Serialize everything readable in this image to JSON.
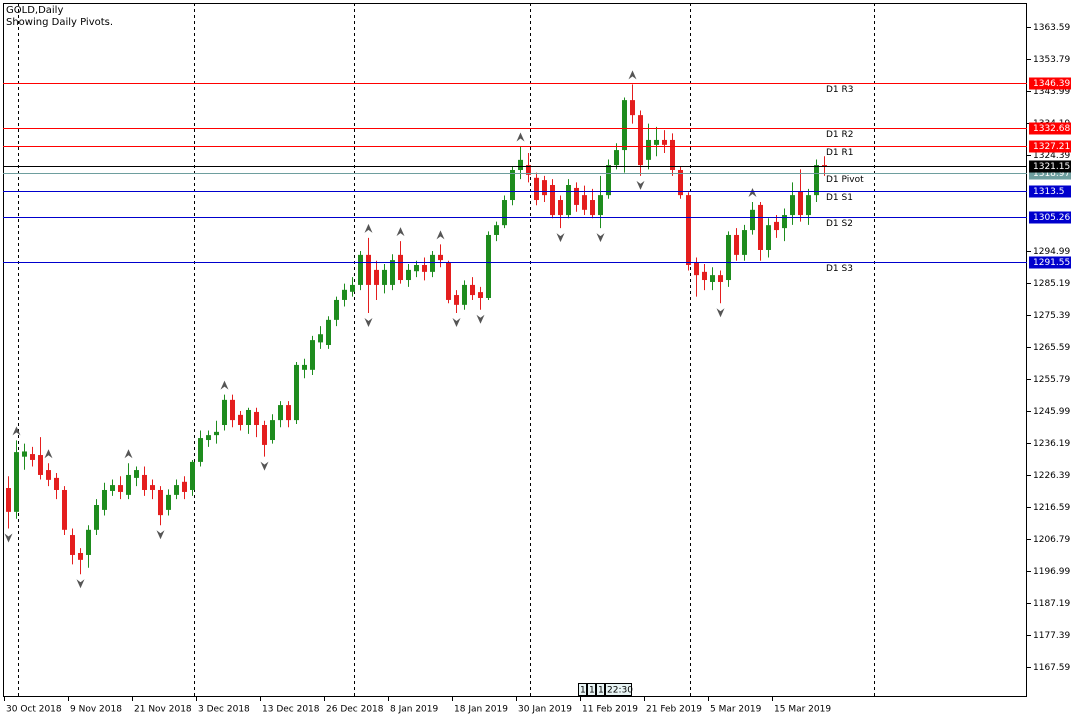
{
  "chart_data": {
    "type": "candlestick",
    "title": "GOLD,Daily",
    "subtitle": "Showing Daily Pivots.",
    "categories": [
      "30 Oct 2018",
      null,
      null,
      null,
      null,
      null,
      null,
      null,
      "9 Nov 2018",
      null,
      null,
      null,
      null,
      null,
      null,
      null,
      "21 Nov 2018",
      null,
      null,
      null,
      null,
      null,
      null,
      null,
      "3 Dec 2018",
      null,
      null,
      null,
      null,
      null,
      null,
      null,
      "13 Dec 2018",
      null,
      null,
      null,
      null,
      null,
      null,
      null,
      "26 Dec 2018",
      null,
      null,
      null,
      null,
      null,
      null,
      null,
      "8 Jan 2019",
      null,
      null,
      null,
      null,
      null,
      null,
      null,
      "18 Jan 2019",
      null,
      null,
      null,
      null,
      null,
      null,
      null,
      "30 Jan 2019",
      null,
      null,
      null,
      null,
      null,
      null,
      null,
      "11 Feb 2019",
      null,
      null,
      null,
      null,
      null,
      null,
      null,
      "21 Feb 2019",
      null,
      null,
      null,
      null,
      null,
      null,
      null,
      "5 Mar 2019",
      null,
      null,
      null,
      null,
      null,
      null,
      null,
      "15 Mar 2019",
      null,
      null,
      null,
      null,
      null,
      null
    ],
    "open": [
      1222.4,
      1215.1,
      1232.0,
      1232.8,
      1232.5,
      1227.9,
      1225.5,
      1221.8,
      1208.0,
      1202.5,
      1201.9,
      1209.6,
      1215.7,
      1221.5,
      1223.3,
      1220.3,
      1225.5,
      1226.4,
      1223.3,
      1221.8,
      1215.7,
      1220.3,
      1224.3,
      1221.8,
      1230.4,
      1237.1,
      1238.6,
      1241.7,
      1249.4,
      1244.8,
      1241.7,
      1245.7,
      1241.7,
      1237.1,
      1243.2,
      1247.8,
      1243.2,
      1258.6,
      1258.6,
      1267.0,
      1266.2,
      1273.9,
      1280.0,
      1282.5,
      1284.6,
      1293.8,
      1289.2,
      1284.6,
      1284.6,
      1293.8,
      1286.1,
      1288.8,
      1290.7,
      1288.6,
      1293.8,
      1291.6,
      1281.5,
      1278.5,
      1284.6,
      1282.4,
      1280.6,
      1299.9,
      1302.9,
      1310.6,
      1319.8,
      1321.3,
      1317.4,
      1316.7,
      1315.2,
      1310.6,
      1306.0,
      1314.3,
      1312.1,
      1310.6,
      1306.0,
      1312.1,
      1321.3,
      1325.9,
      1341.2,
      1336.6,
      1322.9,
      1327.5,
      1329.0,
      1329.0,
      1319.8,
      1312.1,
      1291.6,
      1288.6,
      1285.5,
      1287.6,
      1286.1,
      1299.9,
      1293.8,
      1301.4,
      1309.1,
      1295.3,
      1303.9,
      1302.0,
      1306.0,
      1313.1,
      1306.0,
      1312.1,
      1321.3
    ],
    "high": [
      1226,
      1237,
      1236,
      1235,
      1238,
      1230,
      1227,
      1223,
      1210,
      1204,
      1211,
      1219,
      1224,
      1225,
      1226,
      1230,
      1229,
      1229,
      1225,
      1223,
      1222,
      1225,
      1226,
      1231,
      1240,
      1240,
      1243,
      1251,
      1251,
      1246,
      1247,
      1247,
      1243,
      1245,
      1249,
      1249,
      1261,
      1262,
      1269,
      1272,
      1275,
      1281,
      1285,
      1287,
      1295,
      1299,
      1292,
      1291,
      1294,
      1298,
      1291,
      1292,
      1293,
      1295,
      1297,
      1292,
      1283,
      1286,
      1287,
      1284,
      1301,
      1304,
      1312,
      1321,
      1327,
      1325,
      1319,
      1318,
      1317,
      1312,
      1317,
      1316,
      1315,
      1314,
      1318,
      1323,
      1328,
      1342,
      1346,
      1338,
      1334,
      1333,
      1332,
      1331,
      1321,
      1313,
      1293,
      1291,
      1290,
      1289,
      1301,
      1302,
      1303,
      1310,
      1310,
      1305,
      1306,
      1308,
      1316,
      1320,
      1314,
      1323,
      1324
    ],
    "low": [
      1210,
      1213,
      1228,
      1229,
      1225,
      1223,
      1219,
      1208,
      1199,
      1196,
      1198,
      1208,
      1214,
      1220,
      1219,
      1219,
      1223,
      1220,
      1219,
      1211,
      1214,
      1219,
      1219,
      1220,
      1229,
      1235,
      1236,
      1240,
      1241,
      1240,
      1239,
      1238,
      1232,
      1236,
      1241,
      1241,
      1242,
      1256,
      1257,
      1265,
      1265,
      1272,
      1278,
      1281,
      1283,
      1276,
      1280,
      1282,
      1283,
      1285,
      1284,
      1287,
      1286,
      1287,
      1290,
      1279,
      1276,
      1277,
      1280,
      1277,
      1280,
      1298,
      1302,
      1309,
      1317,
      1316,
      1309,
      1310,
      1305,
      1302,
      1305,
      1307,
      1306,
      1305,
      1302,
      1311,
      1320,
      1319,
      1334,
      1318,
      1320,
      1324,
      1325,
      1318,
      1311,
      1289,
      1281,
      1283,
      1283,
      1279,
      1284,
      1292,
      1292,
      1300,
      1292,
      1293,
      1299,
      1298,
      1303,
      1304,
      1303,
      1310,
      1318
    ],
    "close": [
      1215.1,
      1233.4,
      1233.6,
      1231.0,
      1226.4,
      1224.9,
      1221.8,
      1209.6,
      1201.9,
      1200.4,
      1209.6,
      1217.2,
      1221.8,
      1223.3,
      1221.2,
      1226.4,
      1227.9,
      1221.8,
      1221.8,
      1214.1,
      1220.3,
      1223.3,
      1221.2,
      1230.4,
      1237.7,
      1238.6,
      1239.6,
      1249.4,
      1243.2,
      1241.7,
      1246.3,
      1241.7,
      1235.6,
      1243.2,
      1247.8,
      1243.2,
      1260.1,
      1260.1,
      1267.7,
      1269.5,
      1273.9,
      1280.0,
      1283.1,
      1284.6,
      1293.8,
      1284.6,
      1284.6,
      1289.2,
      1292.2,
      1286.1,
      1289.2,
      1290.7,
      1288.6,
      1293.8,
      1292.2,
      1280.0,
      1278.5,
      1284.6,
      1281.5,
      1280.6,
      1299.9,
      1302.9,
      1310.6,
      1319.8,
      1322.9,
      1318.3,
      1310.6,
      1312.1,
      1306.0,
      1306.0,
      1315.2,
      1309.1,
      1307.6,
      1306.0,
      1312.1,
      1321.3,
      1325.9,
      1341.2,
      1336.6,
      1321.3,
      1329.0,
      1329.0,
      1327.5,
      1319.8,
      1312.1,
      1290.7,
      1287.6,
      1286.1,
      1287.6,
      1285.5,
      1299.9,
      1293.8,
      1301.4,
      1307.6,
      1295.3,
      1302.9,
      1301.4,
      1306.0,
      1312.1,
      1306.0,
      1312.1,
      1321.3,
      1321.15
    ],
    "up_color": "#1e8c1e",
    "down_color": "#e41e1e",
    "fractals_up": [
      1,
      5,
      15,
      27,
      45,
      49,
      54,
      64,
      78,
      93
    ],
    "fractals_down": [
      0,
      9,
      19,
      32,
      45,
      56,
      59,
      69,
      74,
      79,
      89
    ],
    "levels": [
      {
        "name": "D1 R3",
        "value": 1346.39,
        "color": "#ff0000"
      },
      {
        "name": "D1 R2",
        "value": 1332.68,
        "color": "#ff0000"
      },
      {
        "name": "D1 R1",
        "value": 1327.21,
        "color": "#ff0000"
      },
      {
        "name": "D1 Pivot",
        "value": 1318.97,
        "color": "#6e9e9e"
      },
      {
        "name": "D1 S1",
        "value": 1313.5,
        "color": "#0000cd"
      },
      {
        "name": "D1 S2",
        "value": 1305.26,
        "color": "#0000cd"
      },
      {
        "name": "D1 S3",
        "value": 1291.55,
        "color": "#0000cd"
      }
    ],
    "last_price": 1321.15,
    "status": [
      "1",
      "1",
      "1",
      "22:30"
    ],
    "ylim": [
      1158.4,
      1370.94
    ],
    "yticks": [
      1363.59,
      1353.79,
      1343.99,
      1334.19,
      1324.39,
      1294.99,
      1285.19,
      1275.39,
      1265.59,
      1255.79,
      1245.99,
      1236.19,
      1226.39,
      1216.59,
      1206.79,
      1196.99,
      1187.19,
      1177.39,
      1167.59
    ]
  }
}
